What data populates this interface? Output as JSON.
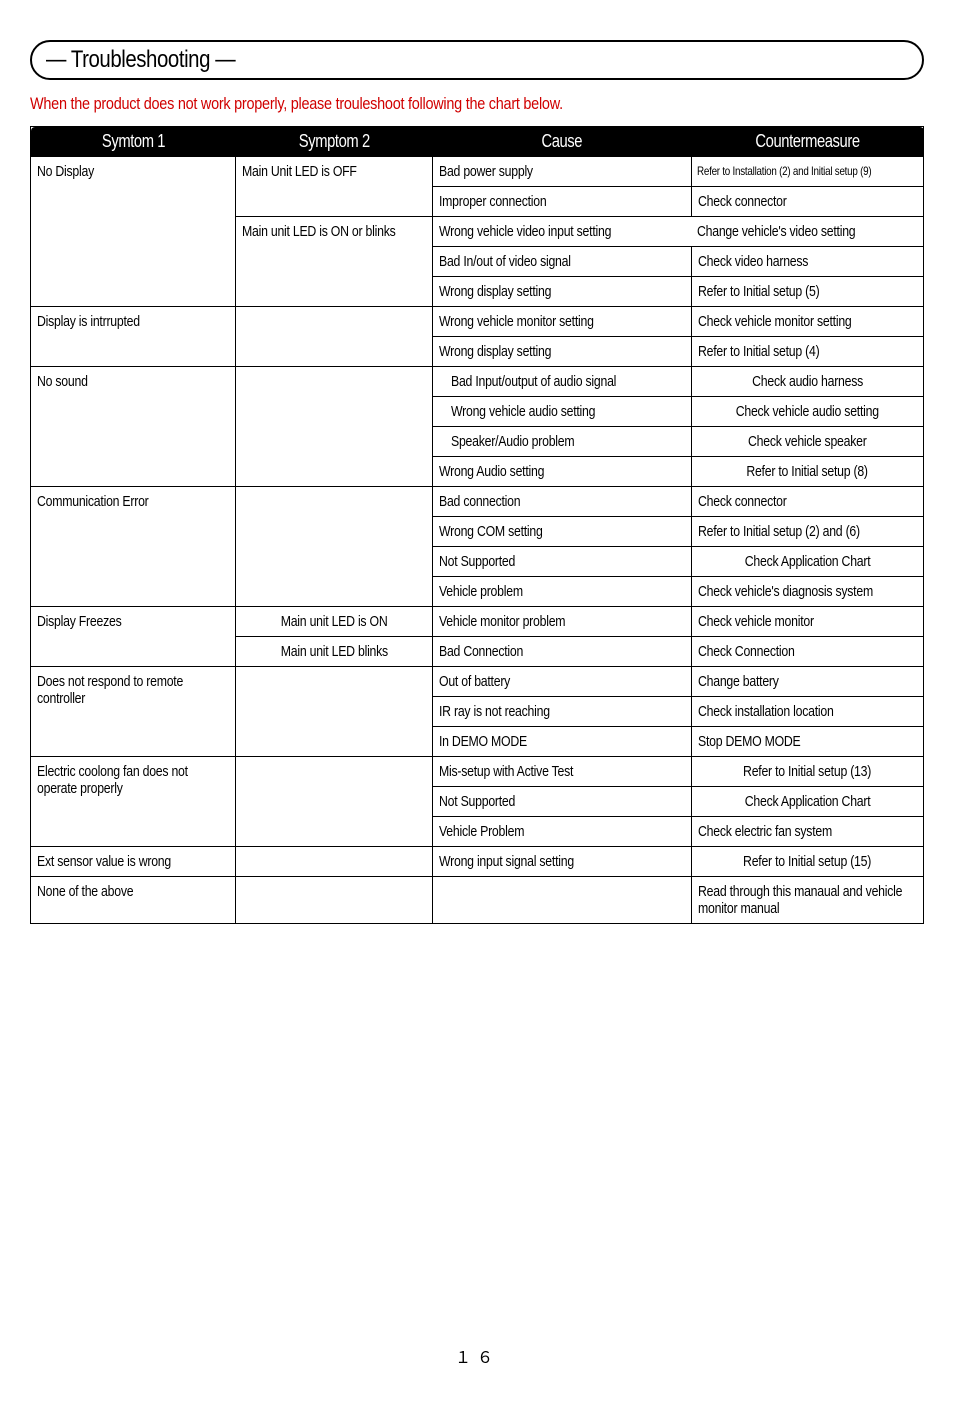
{
  "page": {
    "title": "— Troubleshooting —",
    "subtitle": "When the product does not work properly, please trouleshoot following the chart below.",
    "page_number": "１６"
  },
  "table": {
    "headers": [
      "Symtom 1",
      "Symptom 2",
      "Cause",
      "Countermeasure"
    ],
    "rows": [
      {
        "s1": "No Display",
        "s1_rowspan": 5,
        "s2": "Main Unit LED is OFF",
        "s2_rowspan": 2,
        "cause": "Bad power supply",
        "counter": "Refer to Installation (2) and Initial setup (9)",
        "counter_tight": true
      },
      {
        "cause": "Improper connection",
        "counter": "Check connector"
      },
      {
        "s2": "Main unit LED is ON or blinks",
        "s2_rowspan": 3,
        "s2_multiline": true,
        "cause": "Wrong vehicle video input setting",
        "counter": "Change vehicle's video setting",
        "overflow_row": true
      },
      {
        "cause": "Bad In/out of video signal",
        "counter": "Check video harness"
      },
      {
        "cause": "Wrong display setting",
        "counter": "Refer to Initial setup (5)"
      },
      {
        "s1": "Display is intrrupted",
        "s1_rowspan": 2,
        "s2": "",
        "s2_rowspan": 2,
        "cause": "Wrong vehicle monitor setting",
        "counter": "Check vehicle monitor setting"
      },
      {
        "cause": "Wrong display setting",
        "counter": "Refer to Initial setup (4)",
        "counter_indent": true
      },
      {
        "s1": "No sound",
        "s1_rowspan": 4,
        "s2": "",
        "s2_rowspan": 4,
        "cause": "Bad Input/output of audio signal",
        "cause_indent": true,
        "counter": "Check audio harness",
        "counter_center": true
      },
      {
        "cause": "Wrong vehicle audio setting",
        "cause_indent": true,
        "counter": "Check vehicle audio setting",
        "counter_center": true
      },
      {
        "cause": "Speaker/Audio problem",
        "cause_indent": true,
        "counter": "Check vehicle speaker",
        "counter_center": true
      },
      {
        "cause": "Wrong Audio setting",
        "counter": "Refer to Initial setup (8)",
        "counter_center": true
      },
      {
        "s1": "Communication Error",
        "s1_rowspan": 4,
        "s2": "",
        "s2_rowspan": 4,
        "cause": "Bad connection",
        "counter": "Check connector"
      },
      {
        "cause": "Wrong COM setting",
        "counter": "Refer to Initial setup (2) and (6)"
      },
      {
        "cause": "Not Supported",
        "counter": "Check Application Chart",
        "counter_center": true
      },
      {
        "cause": "Vehicle problem",
        "counter": "Check vehicle's diagnosis system"
      },
      {
        "s1": "Display Freezes",
        "s1_rowspan": 2,
        "s2": "Main unit LED is ON",
        "s2_center": true,
        "cause": "Vehicle monitor problem",
        "counter": "Check vehicle monitor"
      },
      {
        "s2": "Main unit LED blinks",
        "s2_center": true,
        "cause": "Bad Connection",
        "counter": "Check Connection"
      },
      {
        "s1": "Does not respond to remote controller",
        "s1_rowspan": 3,
        "s1_multiline": true,
        "s2": "",
        "s2_rowspan": 3,
        "cause": "Out of battery",
        "counter": "Change battery"
      },
      {
        "cause": "IR ray is not reaching",
        "counter": "Check installation location"
      },
      {
        "cause": "In DEMO MODE",
        "counter": "Stop DEMO MODE"
      },
      {
        "s1": "Electric coolong fan does not operate properly",
        "s1_rowspan": 3,
        "s1_multiline": true,
        "s2": "",
        "s2_rowspan": 3,
        "cause": "Mis-setup with Active Test",
        "counter": "Refer to Initial setup (13)",
        "counter_center": true
      },
      {
        "cause": "Not Supported",
        "counter": "Check Application Chart",
        "counter_center": true
      },
      {
        "cause": "Vehicle Problem",
        "counter": "Check electric fan system"
      },
      {
        "s1": "Ext sensor value is wrong",
        "s2": "",
        "cause": "Wrong input signal setting",
        "counter": "Refer to Initial setup (15)",
        "counter_center": true
      },
      {
        "s1": "None of the above",
        "s2": "",
        "cause": "",
        "counter": "Read through this manaual and vehicle monitor manual",
        "counter_multiline": true,
        "counter_tight": false
      }
    ]
  }
}
